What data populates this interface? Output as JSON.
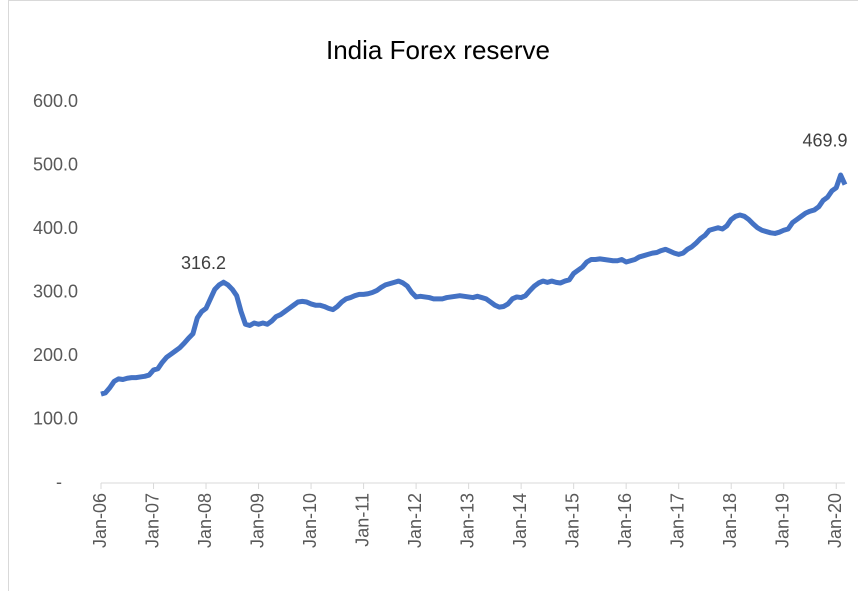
{
  "chart_data": {
    "type": "line",
    "title": "India Forex reserve",
    "x": [
      "2006-01",
      "2006-02",
      "2006-03",
      "2006-04",
      "2006-05",
      "2006-06",
      "2006-07",
      "2006-08",
      "2006-09",
      "2006-10",
      "2006-11",
      "2006-12",
      "2007-01",
      "2007-02",
      "2007-03",
      "2007-04",
      "2007-05",
      "2007-06",
      "2007-07",
      "2007-08",
      "2007-09",
      "2007-10",
      "2007-11",
      "2007-12",
      "2008-01",
      "2008-02",
      "2008-03",
      "2008-04",
      "2008-05",
      "2008-06",
      "2008-07",
      "2008-08",
      "2008-09",
      "2008-10",
      "2008-11",
      "2008-12",
      "2009-01",
      "2009-02",
      "2009-03",
      "2009-04",
      "2009-05",
      "2009-06",
      "2009-07",
      "2009-08",
      "2009-09",
      "2009-10",
      "2009-11",
      "2009-12",
      "2010-01",
      "2010-02",
      "2010-03",
      "2010-04",
      "2010-05",
      "2010-06",
      "2010-07",
      "2010-08",
      "2010-09",
      "2010-10",
      "2010-11",
      "2010-12",
      "2011-01",
      "2011-02",
      "2011-03",
      "2011-04",
      "2011-05",
      "2011-06",
      "2011-07",
      "2011-08",
      "2011-09",
      "2011-10",
      "2011-11",
      "2011-12",
      "2012-01",
      "2012-02",
      "2012-03",
      "2012-04",
      "2012-05",
      "2012-06",
      "2012-07",
      "2012-08",
      "2012-09",
      "2012-10",
      "2012-11",
      "2012-12",
      "2013-01",
      "2013-02",
      "2013-03",
      "2013-04",
      "2013-05",
      "2013-06",
      "2013-07",
      "2013-08",
      "2013-09",
      "2013-10",
      "2013-11",
      "2013-12",
      "2014-01",
      "2014-02",
      "2014-03",
      "2014-04",
      "2014-05",
      "2014-06",
      "2014-07",
      "2014-08",
      "2014-09",
      "2014-10",
      "2014-11",
      "2014-12",
      "2015-01",
      "2015-02",
      "2015-03",
      "2015-04",
      "2015-05",
      "2015-06",
      "2015-07",
      "2015-08",
      "2015-09",
      "2015-10",
      "2015-11",
      "2015-12",
      "2016-01",
      "2016-02",
      "2016-03",
      "2016-04",
      "2016-05",
      "2016-06",
      "2016-07",
      "2016-08",
      "2016-09",
      "2016-10",
      "2016-11",
      "2016-12",
      "2017-01",
      "2017-02",
      "2017-03",
      "2017-04",
      "2017-05",
      "2017-06",
      "2017-07",
      "2017-08",
      "2017-09",
      "2017-10",
      "2017-11",
      "2017-12",
      "2018-01",
      "2018-02",
      "2018-03",
      "2018-04",
      "2018-05",
      "2018-06",
      "2018-07",
      "2018-08",
      "2018-09",
      "2018-10",
      "2018-11",
      "2018-12",
      "2019-01",
      "2019-02",
      "2019-03",
      "2019-04",
      "2019-05",
      "2019-06",
      "2019-07",
      "2019-08",
      "2019-09",
      "2019-10",
      "2019-11",
      "2019-12",
      "2020-01",
      "2020-02",
      "2020-03"
    ],
    "series": [
      {
        "color": "#4472c4",
        "values": [
          140,
          142,
          150,
          160,
          164,
          163,
          165,
          166,
          166,
          167,
          168,
          170,
          178,
          180,
          190,
          198,
          203,
          208,
          213,
          220,
          228,
          235,
          260,
          270,
          275,
          290,
          305,
          312,
          316.2,
          312,
          305,
          295,
          270,
          250,
          248,
          252,
          250,
          252,
          250,
          255,
          262,
          265,
          270,
          275,
          280,
          285,
          286,
          285,
          282,
          280,
          280,
          278,
          275,
          273,
          278,
          285,
          290,
          292,
          295,
          297,
          297,
          298,
          300,
          303,
          308,
          312,
          314,
          316,
          318,
          315,
          310,
          300,
          293,
          294,
          293,
          292,
          290,
          290,
          290,
          292,
          293,
          294,
          295,
          294,
          293,
          292,
          294,
          292,
          290,
          285,
          280,
          277,
          278,
          282,
          290,
          293,
          292,
          295,
          303,
          310,
          315,
          318,
          316,
          318,
          316,
          315,
          318,
          320,
          330,
          335,
          340,
          348,
          352,
          352,
          353,
          352,
          351,
          350,
          350,
          352,
          348,
          350,
          352,
          356,
          358,
          360,
          362,
          363,
          366,
          368,
          365,
          362,
          360,
          362,
          368,
          372,
          378,
          385,
          390,
          398,
          400,
          402,
          400,
          405,
          415,
          420,
          422,
          420,
          415,
          408,
          402,
          398,
          396,
          394,
          393,
          395,
          398,
          400,
          410,
          415,
          420,
          425,
          428,
          430,
          435,
          445,
          450,
          460,
          465,
          485,
          469.9
        ]
      }
    ],
    "data_labels": [
      "2008-05",
      "2020-03"
    ],
    "xlim": [
      "2006-01",
      "2020-03"
    ],
    "xticks": [
      {
        "value": "2006-01",
        "label": "Jan-06"
      },
      {
        "value": "2007-01",
        "label": "Jan-07"
      },
      {
        "value": "2008-01",
        "label": "Jan-08"
      },
      {
        "value": "2009-01",
        "label": "Jan-09"
      },
      {
        "value": "2010-01",
        "label": "Jan-10"
      },
      {
        "value": "2011-01",
        "label": "Jan-11"
      },
      {
        "value": "2012-01",
        "label": "Jan-12"
      },
      {
        "value": "2013-01",
        "label": "Jan-13"
      },
      {
        "value": "2014-01",
        "label": "Jan-14"
      },
      {
        "value": "2015-01",
        "label": "Jan-15"
      },
      {
        "value": "2016-01",
        "label": "Jan-16"
      },
      {
        "value": "2017-01",
        "label": "Jan-17"
      },
      {
        "value": "2018-01",
        "label": "Jan-18"
      },
      {
        "value": "2019-01",
        "label": "Jan-19"
      },
      {
        "value": "2020-01",
        "label": "Jan-20"
      }
    ],
    "ylim": [
      0,
      600
    ],
    "yticks": [
      {
        "value": 0,
        "label": "-"
      },
      {
        "value": 100,
        "label": "100.0"
      },
      {
        "value": 200,
        "label": "200.0"
      },
      {
        "value": 300,
        "label": "300.0"
      },
      {
        "value": 400,
        "label": "400.0"
      },
      {
        "value": 500,
        "label": "500.0"
      },
      {
        "value": 600,
        "label": "600.0"
      }
    ],
    "grid": false
  }
}
